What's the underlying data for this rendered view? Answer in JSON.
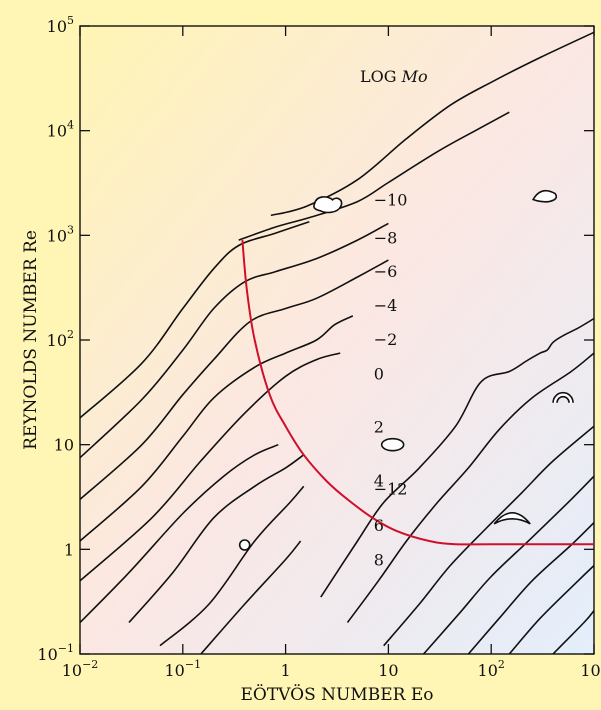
{
  "chart_data": {
    "type": "line",
    "title": "",
    "xlabel": "EÖTVÖS NUMBER Eo",
    "ylabel": "REYNOLDS NUMBER Re",
    "xscale": "log",
    "yscale": "log",
    "xlim": [
      0.01,
      1000
    ],
    "ylim": [
      0.1,
      100000
    ],
    "grid": false,
    "x_ticks": [
      {
        "value": 0.01,
        "base": "10",
        "exp": "−2"
      },
      {
        "value": 0.1,
        "base": "10",
        "exp": "−1"
      },
      {
        "value": 1,
        "base": "1",
        "exp": ""
      },
      {
        "value": 10,
        "base": "10",
        "exp": ""
      },
      {
        "value": 100,
        "base": "10",
        "exp": "2"
      },
      {
        "value": 1000,
        "base": "10",
        "exp": "3"
      }
    ],
    "y_ticks": [
      {
        "value": 0.1,
        "base": "10",
        "exp": "−1"
      },
      {
        "value": 1,
        "base": "1",
        "exp": ""
      },
      {
        "value": 10,
        "base": "10",
        "exp": ""
      },
      {
        "value": 100,
        "base": "10",
        "exp": "2"
      },
      {
        "value": 1000,
        "base": "10",
        "exp": "3"
      },
      {
        "value": 10000,
        "base": "10",
        "exp": "4"
      },
      {
        "value": 100000,
        "base": "10",
        "exp": "5"
      }
    ],
    "legend_title": {
      "text": "LOG ",
      "italic": "Mo"
    },
    "series": [
      {
        "name": "−12",
        "label_at": [
          7.2,
          3.35
        ],
        "points": [
          [
            0.72,
            1550
          ],
          [
            1.6,
            1900
          ],
          [
            5,
            3400
          ],
          [
            15,
            8400
          ],
          [
            40,
            17500
          ],
          [
            100,
            29000
          ],
          [
            300,
            50000
          ],
          [
            1000,
            87000
          ]
        ]
      },
      {
        "name": "−10",
        "label_at": [
          7.2,
          1920
        ],
        "points": [
          [
            0.35,
            900
          ],
          [
            0.8,
            1200
          ],
          [
            1.8,
            1500
          ],
          [
            5,
            2100
          ],
          [
            10,
            3200
          ],
          [
            30,
            6300
          ],
          [
            70,
            10000
          ],
          [
            150,
            15000
          ]
        ]
      },
      {
        "name": "−8",
        "label_at": [
          7.2,
          840
        ],
        "points": [
          [
            0.01,
            18
          ],
          [
            0.04,
            60
          ],
          [
            0.1,
            200
          ],
          [
            0.2,
            480
          ],
          [
            0.35,
            800
          ],
          [
            0.8,
            1050
          ],
          [
            1.7,
            1350
          ]
        ]
      },
      {
        "name": "−6",
        "label_at": [
          7.2,
          400
        ],
        "points": [
          [
            0.01,
            7.5
          ],
          [
            0.04,
            27
          ],
          [
            0.1,
            80
          ],
          [
            0.2,
            200
          ],
          [
            0.4,
            360
          ],
          [
            0.8,
            450
          ],
          [
            2,
            600
          ],
          [
            5,
            900
          ],
          [
            10,
            1300
          ]
        ]
      },
      {
        "name": "−4",
        "label_at": [
          7.2,
          190
        ],
        "points": [
          [
            0.01,
            3
          ],
          [
            0.04,
            10
          ],
          [
            0.1,
            30
          ],
          [
            0.2,
            65
          ],
          [
            0.45,
            150
          ],
          [
            1,
            200
          ],
          [
            2,
            250
          ],
          [
            5,
            400
          ],
          [
            10,
            580
          ]
        ]
      },
      {
        "name": "−2",
        "label_at": [
          7.2,
          90
        ],
        "points": [
          [
            0.01,
            1.2
          ],
          [
            0.04,
            4
          ],
          [
            0.1,
            12
          ],
          [
            0.2,
            28
          ],
          [
            0.5,
            55
          ],
          [
            1,
            75
          ],
          [
            2,
            100
          ],
          [
            3,
            140
          ],
          [
            4.5,
            170
          ]
        ]
      },
      {
        "name": "0",
        "label_at": [
          7.2,
          42
        ],
        "points": [
          [
            0.01,
            0.5
          ],
          [
            0.05,
            2
          ],
          [
            0.15,
            7
          ],
          [
            0.4,
            20
          ],
          [
            1,
            45
          ],
          [
            2,
            65
          ],
          [
            3.4,
            75
          ]
        ]
      },
      {
        "name": "2",
        "label_at": [
          7.2,
          13
        ],
        "points": [
          [
            0.01,
            0.2
          ],
          [
            0.03,
            0.6
          ],
          [
            0.1,
            2.2
          ],
          [
            0.25,
            5
          ],
          [
            0.5,
            8
          ],
          [
            0.85,
            10
          ]
        ]
      },
      {
        "name": "4",
        "label_at": [
          7.2,
          4
        ],
        "points": [
          [
            0.03,
            0.2
          ],
          [
            0.08,
            0.6
          ],
          [
            0.2,
            2
          ],
          [
            0.5,
            4
          ],
          [
            1,
            6
          ],
          [
            1.5,
            8
          ]
        ]
      },
      {
        "name": "6",
        "label_at": [
          7.2,
          1.5
        ],
        "points": [
          [
            0.06,
            0.12
          ],
          [
            0.18,
            0.3
          ],
          [
            0.5,
            1.2
          ],
          [
            1.1,
            2.8
          ],
          [
            1.5,
            4
          ]
        ]
      },
      {
        "name": "8",
        "label_at": [
          7.2,
          0.7
        ],
        "points": [
          [
            0.15,
            0.1
          ],
          [
            0.4,
            0.3
          ],
          [
            1,
            0.8
          ],
          [
            1.4,
            1.2
          ]
        ]
      }
    ],
    "extra_curves": [
      {
        "id": "c-mid-1",
        "points": [
          [
            2.2,
            0.35
          ],
          [
            5,
            1.2
          ],
          [
            9,
            2.8
          ],
          [
            20,
            6
          ],
          [
            45,
            15
          ],
          [
            80,
            40
          ],
          [
            150,
            50
          ],
          [
            220,
            63
          ],
          [
            300,
            75
          ],
          [
            350,
            80
          ],
          [
            400,
            95
          ],
          [
            500,
            110
          ],
          [
            700,
            130
          ],
          [
            1000,
            160
          ]
        ]
      },
      {
        "id": "c-mid-2",
        "points": [
          [
            4,
            0.2
          ],
          [
            8,
            0.5
          ],
          [
            15,
            1.2
          ],
          [
            30,
            2.8
          ],
          [
            60,
            6
          ],
          [
            120,
            14
          ],
          [
            250,
            28
          ],
          [
            600,
            50
          ],
          [
            1000,
            75
          ]
        ]
      },
      {
        "id": "c-mid-3",
        "points": [
          [
            9,
            0.12
          ],
          [
            20,
            0.3
          ],
          [
            40,
            0.7
          ],
          [
            90,
            1.6
          ],
          [
            200,
            3.5
          ],
          [
            400,
            7
          ],
          [
            1000,
            15
          ]
        ]
      },
      {
        "id": "c-mid-4",
        "points": [
          [
            22,
            0.1
          ],
          [
            50,
            0.25
          ],
          [
            100,
            0.55
          ],
          [
            250,
            1.3
          ],
          [
            600,
            3
          ],
          [
            1000,
            5
          ]
        ]
      },
      {
        "id": "c-mid-5",
        "points": [
          [
            60,
            0.1
          ],
          [
            120,
            0.22
          ],
          [
            250,
            0.5
          ],
          [
            600,
            1.1
          ],
          [
            1000,
            1.8
          ]
        ]
      },
      {
        "id": "c-mid-6",
        "points": [
          [
            150,
            0.1
          ],
          [
            300,
            0.22
          ],
          [
            700,
            0.5
          ],
          [
            1000,
            0.7
          ]
        ]
      },
      {
        "id": "c-mid-7",
        "points": [
          [
            400,
            0.1
          ],
          [
            800,
            0.2
          ],
          [
            1000,
            0.26
          ]
        ]
      }
    ],
    "regime_boundary": {
      "color": "#d0102a",
      "points": [
        [
          0.38,
          900
        ],
        [
          0.42,
          300
        ],
        [
          0.5,
          100
        ],
        [
          0.7,
          30
        ],
        [
          1,
          15
        ],
        [
          1.5,
          8
        ],
        [
          2.5,
          4.5
        ],
        [
          4,
          3
        ],
        [
          7,
          2
        ],
        [
          12,
          1.5
        ],
        [
          25,
          1.2
        ],
        [
          45,
          1.12
        ],
        [
          100,
          1.12
        ],
        [
          1000,
          1.12
        ]
      ]
    },
    "bubble_shapes": [
      {
        "shape": "sphere",
        "at": [
          0.4,
          1.1
        ]
      },
      {
        "shape": "ellipsoid",
        "at": [
          11,
          10
        ]
      },
      {
        "shape": "wobbling",
        "at": [
          2.5,
          2000
        ]
      },
      {
        "shape": "spherical-cap",
        "at": [
          350,
          2400
        ]
      },
      {
        "shape": "skirted",
        "at": [
          500,
          30
        ]
      },
      {
        "shape": "dimpled-cap",
        "at": [
          160,
          2
        ]
      }
    ],
    "regime_colors": {
      "spherical": "#fff5b4",
      "ellipsoidal": "#fbe7e3",
      "cap": "#e3eefc"
    }
  }
}
